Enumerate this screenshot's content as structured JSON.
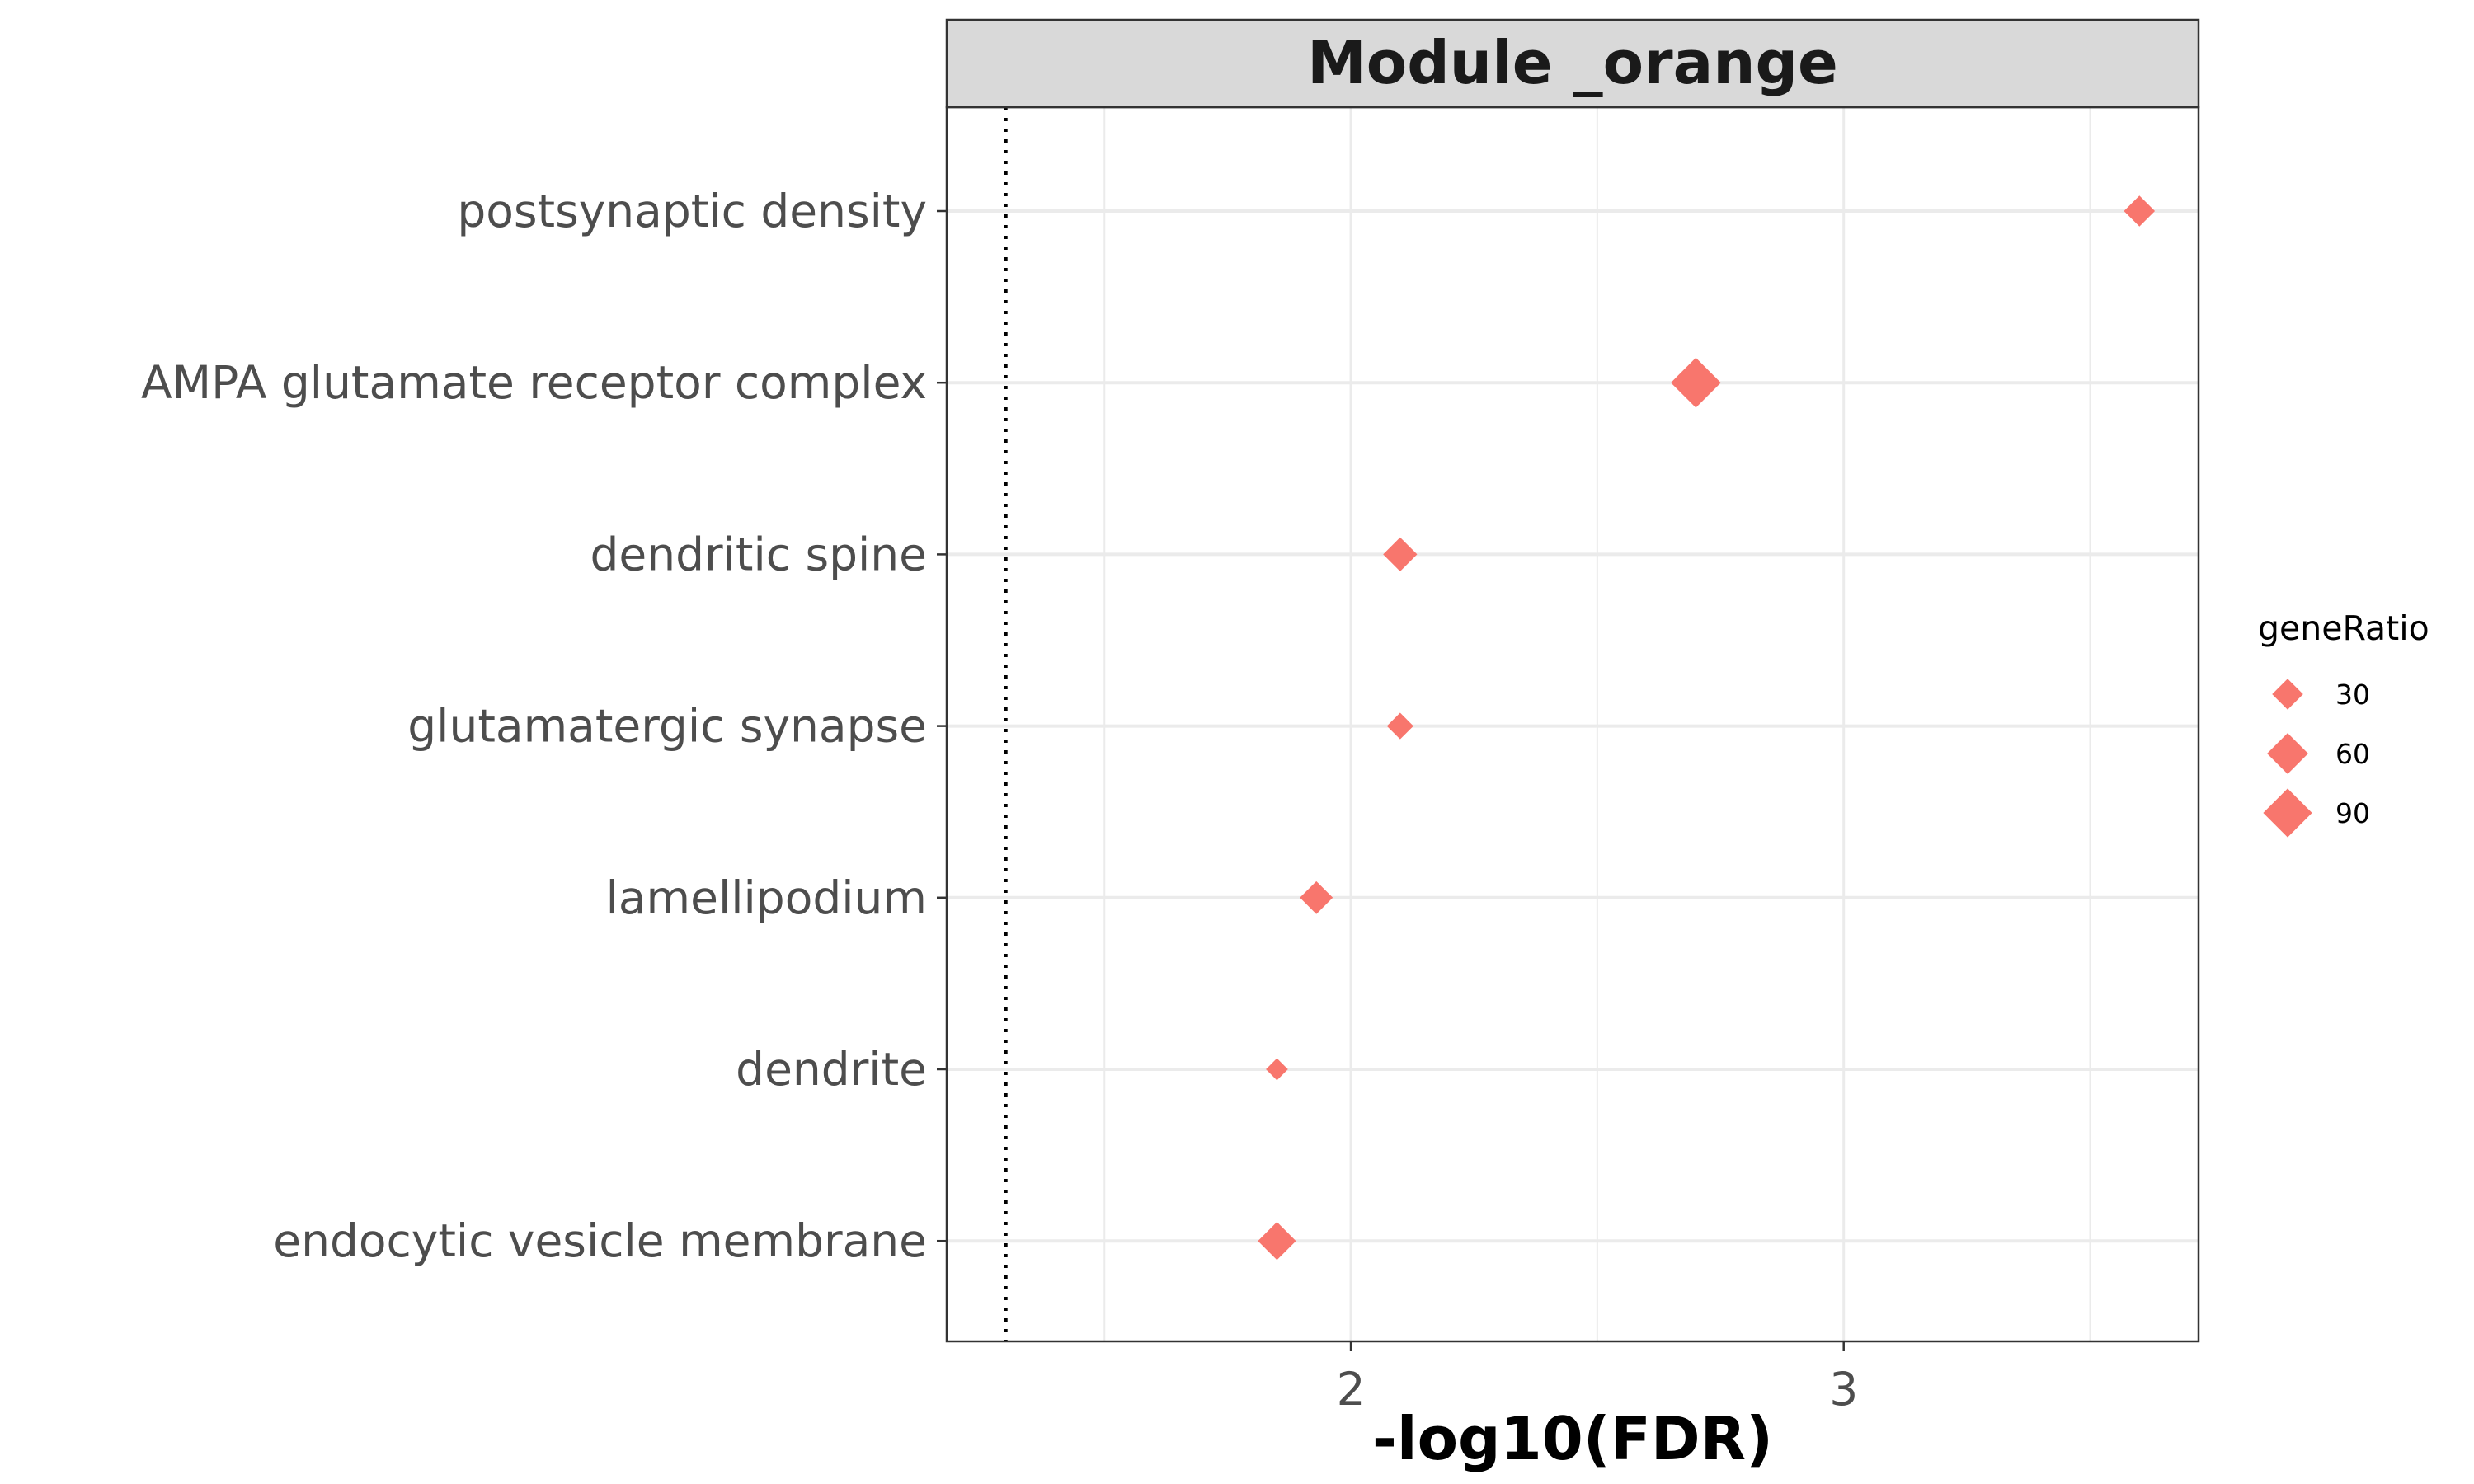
{
  "chart_data": {
    "type": "scatter",
    "title": "Module _orange",
    "xlabel": "-log10(FDR)",
    "ylabel": "",
    "xlim": [
      1.18,
      3.72
    ],
    "x_ticks": [
      2,
      3
    ],
    "x_tick_labels": [
      "2",
      "3"
    ],
    "reference_line": {
      "x": 1.3,
      "style": "dotted"
    },
    "categories": [
      "postsynaptic density",
      "AMPA glutamate receptor complex",
      "dendritic spine",
      "glutamatergic synapse",
      "lamellipodium",
      "dendrite",
      "endocytic vesicle membrane"
    ],
    "points": [
      {
        "category": "postsynaptic density",
        "x": 3.6,
        "geneRatio": 30
      },
      {
        "category": "AMPA glutamate receptor complex",
        "x": 2.7,
        "geneRatio": 95
      },
      {
        "category": "dendritic spine",
        "x": 2.1,
        "geneRatio": 38
      },
      {
        "category": "glutamatergic synapse",
        "x": 2.1,
        "geneRatio": 20
      },
      {
        "category": "lamellipodium",
        "x": 1.93,
        "geneRatio": 35
      },
      {
        "category": "dendrite",
        "x": 1.85,
        "geneRatio": 12
      },
      {
        "category": "endocytic vesicle membrane",
        "x": 1.85,
        "geneRatio": 50
      }
    ],
    "marker": "diamond",
    "point_color": "#F8766D",
    "grid": true,
    "legend": {
      "title": "geneRatio",
      "placement": "right",
      "entries": [
        {
          "label": "30",
          "value": 30
        },
        {
          "label": "60",
          "value": 60
        },
        {
          "label": "90",
          "value": 90
        }
      ]
    }
  }
}
